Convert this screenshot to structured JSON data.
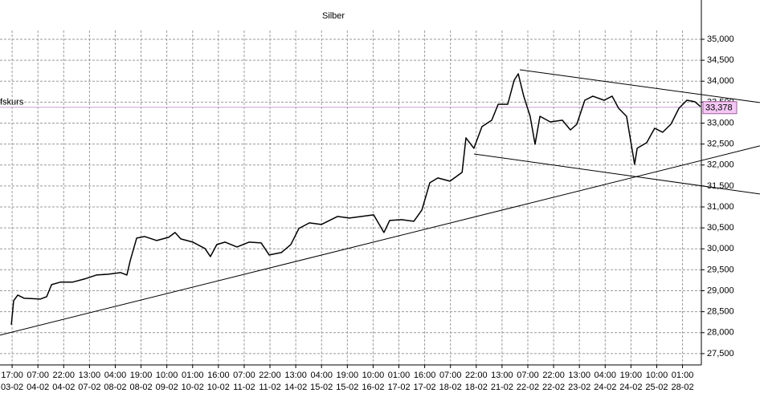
{
  "chart_data": {
    "type": "line",
    "title": "Silber",
    "categories": [
      "17:00",
      "07:00",
      "22:00",
      "13:00",
      "04:00",
      "19:00",
      "10:00",
      "01:00",
      "16:00",
      "07:00",
      "22:00",
      "13:00",
      "04:00",
      "19:00",
      "10:00",
      "01:00",
      "16:00",
      "07:00",
      "22:00",
      "13:00",
      "07:00",
      "22:00",
      "13:00",
      "04:00",
      "19:00",
      "10:00",
      "01:00"
    ],
    "dates": [
      "03-02",
      "04-02",
      "04-02",
      "07-02",
      "08-02",
      "08-02",
      "09-02",
      "10-02",
      "10-02",
      "11-02",
      "11-02",
      "14-02",
      "15-02",
      "15-02",
      "16-02",
      "17-02",
      "17-02",
      "18-02",
      "18-02",
      "21-02",
      "22-02",
      "22-02",
      "23-02",
      "24-02",
      "24-02",
      "25-02",
      "28-02"
    ],
    "xlim": [
      -0.47,
      26.73
    ],
    "ylim": [
      27230,
      35210
    ],
    "yticks": [
      {
        "value": 27500,
        "label": "27,500"
      },
      {
        "value": 28000,
        "label": "28,000"
      },
      {
        "value": 28500,
        "label": "28,500"
      },
      {
        "value": 29000,
        "label": "29,000"
      },
      {
        "value": 29500,
        "label": "29,500"
      },
      {
        "value": 30000,
        "label": "30,000"
      },
      {
        "value": 30500,
        "label": "30,500"
      },
      {
        "value": 31000,
        "label": "31,000"
      },
      {
        "value": 31500,
        "label": "31,500"
      },
      {
        "value": 32000,
        "label": "32,000"
      },
      {
        "value": 32500,
        "label": "32,500"
      },
      {
        "value": 33000,
        "label": "33,000"
      },
      {
        "value": 33500,
        "label": "33,500"
      },
      {
        "value": 34000,
        "label": "34,000"
      },
      {
        "value": 34500,
        "label": "34,500"
      },
      {
        "value": 35000,
        "label": "35,000"
      }
    ],
    "grid": true,
    "series": [
      {
        "color": "#000000",
        "x": [
          -0.03,
          0.06,
          0.22,
          0.47,
          1.09,
          1.34,
          1.53,
          1.87,
          2.34,
          2.8,
          3.27,
          3.74,
          4.21,
          4.45,
          4.58,
          4.83,
          5.14,
          5.61,
          6.07,
          6.32,
          6.54,
          7.01,
          7.48,
          7.69,
          7.94,
          8.26,
          8.72,
          9.19,
          9.66,
          9.97,
          10.44,
          10.81,
          11.12,
          11.53,
          11.99,
          12.62,
          13.08,
          13.55,
          14.02,
          14.42,
          14.64,
          15.11,
          15.58,
          15.89,
          16.2,
          16.51,
          16.98,
          17.45,
          17.6,
          17.91,
          18.22,
          18.6,
          18.85,
          19.22,
          19.47,
          19.63,
          19.84,
          20.09,
          20.28,
          20.47,
          20.87,
          21.34,
          21.65,
          21.9,
          22.21,
          22.52,
          22.96,
          23.27,
          23.52,
          23.83,
          24.14,
          24.24,
          24.61,
          24.92,
          25.23,
          25.55,
          25.86,
          26.17,
          26.48,
          26.7
        ],
        "values": [
          28189,
          28763,
          28897,
          28821,
          28802,
          28859,
          29146,
          29204,
          29204,
          29280,
          29376,
          29395,
          29433,
          29376,
          29720,
          30256,
          30294,
          30198,
          30275,
          30390,
          30237,
          30160,
          30007,
          29816,
          30103,
          30160,
          30045,
          30160,
          30141,
          29854,
          29911,
          30103,
          30485,
          30619,
          30581,
          30772,
          30734,
          30772,
          30810,
          30390,
          30677,
          30696,
          30658,
          30925,
          31576,
          31690,
          31614,
          31825,
          32647,
          32398,
          32915,
          33068,
          33450,
          33450,
          34024,
          34177,
          33642,
          33163,
          32494,
          33163,
          33029,
          33068,
          32838,
          32972,
          33546,
          33642,
          33546,
          33642,
          33354,
          33163,
          32016,
          32398,
          32532,
          32877,
          32781,
          32972,
          33354,
          33546,
          33508,
          33393
        ]
      }
    ],
    "trendlines": [
      {
        "x": [
          -0.47,
          29.0
        ],
        "y": [
          27941,
          32456
        ]
      },
      {
        "x": [
          19.69,
          29.0
        ],
        "y": [
          34273,
          33489
        ]
      },
      {
        "x": [
          17.91,
          29.0
        ],
        "y": [
          32264,
          31308
        ]
      }
    ],
    "current_price": {
      "label": "fskurs",
      "value": 33378,
      "value_label": "33,378",
      "color": "#c8a0d8"
    }
  }
}
